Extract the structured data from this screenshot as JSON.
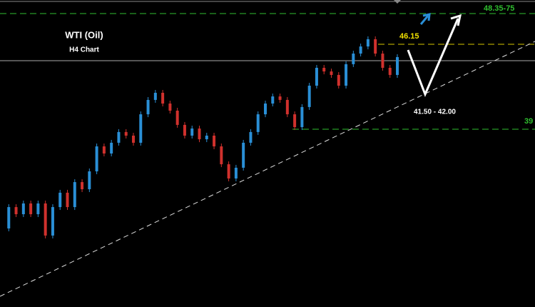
{
  "chart_data": {
    "type": "candlestick",
    "title": "WTI (Oil)",
    "subtitle": "H4 Chart",
    "values": [
      32.93,
      34.46,
      33.95,
      34.72,
      33.95,
      34.72,
      32.42,
      34.46,
      35.49,
      34.46,
      36.25,
      35.74,
      37.02,
      38.81,
      38.3,
      39.07,
      39.84,
      39.58,
      39.07,
      41.11,
      42.14,
      42.65,
      41.88,
      41.37,
      40.35,
      39.58,
      40.09,
      39.32,
      39.58,
      38.81,
      37.53,
      36.51,
      37.28,
      39.07,
      39.84,
      41.11,
      41.88,
      42.39,
      42.14,
      41.11,
      40.19,
      41.63,
      43.16,
      44.44,
      44.18,
      43.93,
      43.16,
      44.7,
      45.46,
      45.97,
      46.49,
      45.46,
      44.44,
      43.93,
      45.21
    ],
    "ylim": [
      27.3,
      49.3
    ],
    "up_color": "#2a8fd6",
    "down_color": "#d0312d",
    "annotations": [
      "48.35-75",
      "46.15",
      "41.50 - 42.00",
      "39"
    ]
  }
}
